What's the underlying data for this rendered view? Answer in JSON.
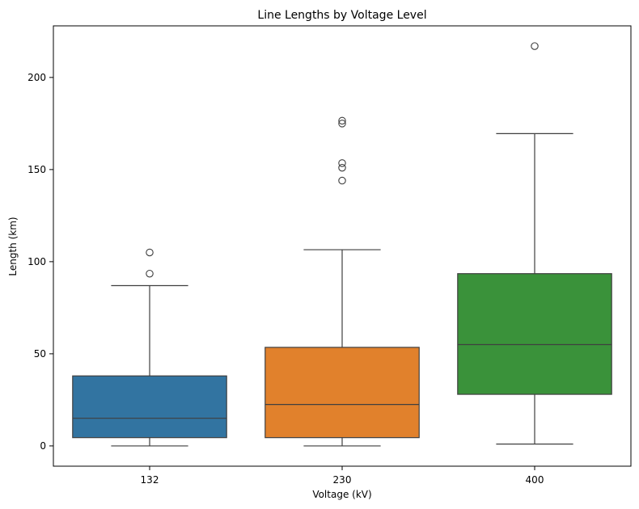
{
  "chart_data": {
    "type": "box",
    "title": "Line Lengths by Voltage Level",
    "xlabel": "Voltage (kV)",
    "ylabel": "Length (km)",
    "categories": [
      "132",
      "230",
      "400"
    ],
    "ylim": [
      -11,
      228
    ],
    "yticks": [
      0,
      50,
      100,
      150,
      200
    ],
    "grid": false,
    "colors": [
      "#3274a1",
      "#e1812c",
      "#3a923a"
    ],
    "boxes": [
      {
        "category": "132",
        "whisker_low": 0,
        "q1": 4.5,
        "median": 15,
        "q3": 38,
        "whisker_high": 87,
        "outliers": [
          93.5,
          105
        ]
      },
      {
        "category": "230",
        "whisker_low": 0,
        "q1": 4.5,
        "median": 22.5,
        "q3": 53.5,
        "whisker_high": 106.5,
        "outliers": [
          144,
          151,
          153.5,
          175,
          176.5
        ]
      },
      {
        "category": "400",
        "whisker_low": 1,
        "q1": 28,
        "median": 55,
        "q3": 93.5,
        "whisker_high": 169.5,
        "outliers": [
          217
        ]
      }
    ]
  }
}
